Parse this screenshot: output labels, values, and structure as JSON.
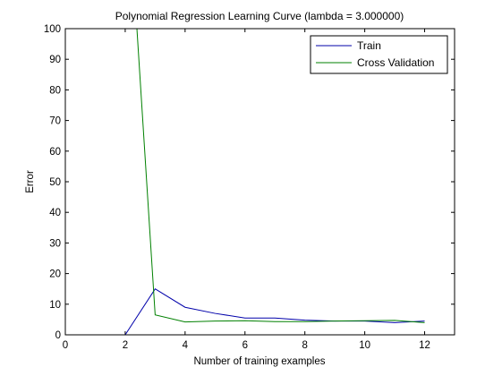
{
  "chart_data": {
    "type": "line",
    "title": "Polynomial Regression Learning Curve (lambda = 3.000000)",
    "xlabel": "Number of training examples",
    "ylabel": "Error",
    "xlim": [
      0,
      13
    ],
    "ylim": [
      0,
      100
    ],
    "xticks": [
      0,
      2,
      4,
      6,
      8,
      10,
      12
    ],
    "yticks": [
      0,
      10,
      20,
      30,
      40,
      50,
      60,
      70,
      80,
      90,
      100
    ],
    "grid": false,
    "legend_position": "top-right",
    "x": [
      1,
      2,
      3,
      4,
      5,
      6,
      7,
      8,
      9,
      10,
      11,
      12
    ],
    "series": [
      {
        "name": "Train",
        "color": "#0000aa",
        "values": [
          0.0,
          0.0,
          15.0,
          9.0,
          7.0,
          5.5,
          5.5,
          4.8,
          4.5,
          4.5,
          4.0,
          4.5
        ]
      },
      {
        "name": "Cross Validation",
        "color": "#008000",
        "values": [
          null,
          160.0,
          6.5,
          4.2,
          4.5,
          4.6,
          4.3,
          4.3,
          4.5,
          4.6,
          4.7,
          4.0
        ]
      }
    ]
  }
}
